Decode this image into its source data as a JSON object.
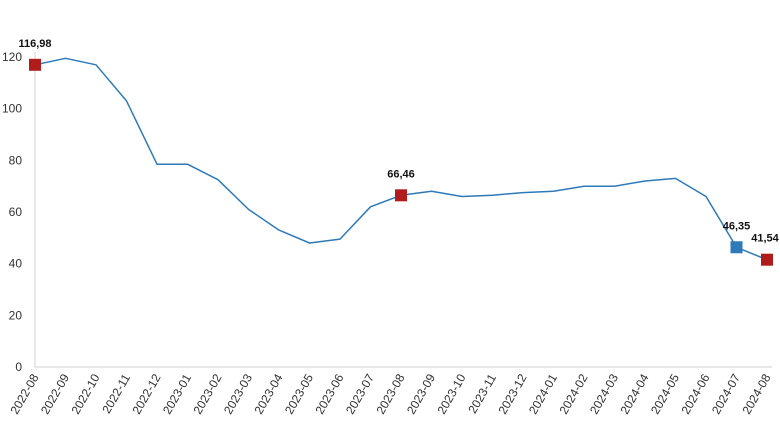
{
  "chart_data": {
    "type": "line",
    "title": "",
    "xlabel": "",
    "ylabel": "",
    "ylim": [
      0,
      120
    ],
    "yticks": [
      0,
      20,
      40,
      60,
      80,
      100,
      120
    ],
    "grid": false,
    "categories": [
      "2022-08",
      "2022-09",
      "2022-10",
      "2022-11",
      "2022-12",
      "2023-01",
      "2023-02",
      "2023-03",
      "2023-04",
      "2023-05",
      "2023-06",
      "2023-07",
      "2023-08",
      "2023-09",
      "2023-10",
      "2023-11",
      "2023-12",
      "2024-01",
      "2024-02",
      "2024-03",
      "2024-04",
      "2024-05",
      "2024-06",
      "2024-07",
      "2024-08"
    ],
    "series": [
      {
        "values": [
          116.98,
          119.5,
          117,
          103,
          78.5,
          78.5,
          72.5,
          61,
          53,
          48,
          49.5,
          62,
          66.46,
          68,
          66,
          66.5,
          67.5,
          68,
          70,
          70,
          72,
          73,
          66,
          46.35,
          41.54
        ],
        "color": "#2e7ab8"
      }
    ],
    "highlights": [
      {
        "index": 0,
        "label": "116,98",
        "color": "#b01c1c"
      },
      {
        "index": 12,
        "label": "66,46",
        "color": "#b01c1c"
      },
      {
        "index": 23,
        "label": "46,35",
        "color": "#2e7ab8"
      },
      {
        "index": 24,
        "label": "41,54",
        "color": "#b01c1c"
      }
    ]
  }
}
